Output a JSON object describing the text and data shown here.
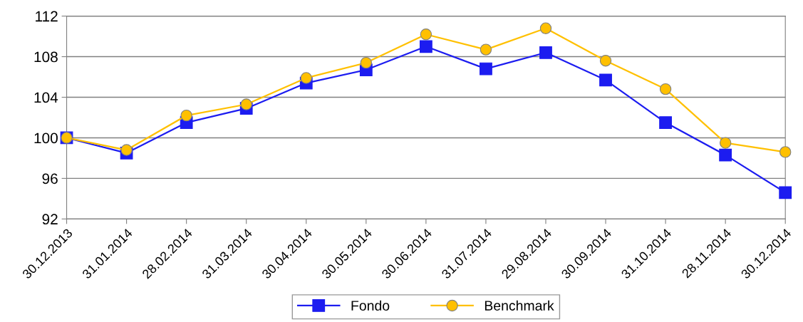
{
  "chart_data": {
    "type": "line",
    "categories": [
      "30.12.2013",
      "31.01.2014",
      "28.02.2014",
      "31.03.2014",
      "30.04.2014",
      "30.05.2014",
      "30.06.2014",
      "31.07.2014",
      "29.08.2014",
      "30.09.2014",
      "31.10.2014",
      "28.11.2014",
      "30.12.2014"
    ],
    "series": [
      {
        "name": "Fondo",
        "color": "#1c1cf0",
        "marker": "square",
        "values": [
          100,
          98.5,
          101.5,
          102.9,
          105.4,
          106.7,
          109.0,
          106.8,
          108.4,
          105.7,
          101.5,
          98.3,
          94.6
        ]
      },
      {
        "name": "Benchmark",
        "color": "#ffc000",
        "marker": "circle",
        "values": [
          100,
          98.8,
          102.2,
          103.3,
          105.9,
          107.4,
          110.2,
          108.7,
          110.8,
          107.6,
          104.8,
          99.5,
          98.6
        ]
      }
    ],
    "ylim": [
      92,
      112
    ],
    "yticks": [
      92,
      96,
      100,
      104,
      108,
      112
    ],
    "grid": "y",
    "legend": "bottom",
    "line_style": "solid"
  }
}
